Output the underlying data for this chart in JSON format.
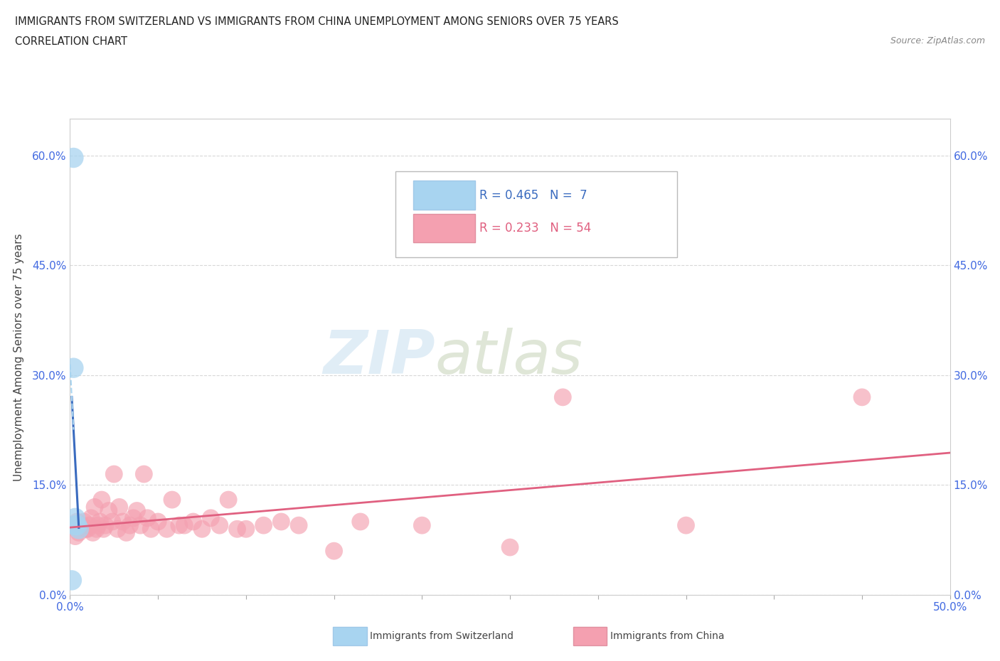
{
  "title_line1": "IMMIGRANTS FROM SWITZERLAND VS IMMIGRANTS FROM CHINA UNEMPLOYMENT AMONG SENIORS OVER 75 YEARS",
  "title_line2": "CORRELATION CHART",
  "source_text": "Source: ZipAtlas.com",
  "ylabel": "Unemployment Among Seniors over 75 years",
  "xlim": [
    0.0,
    0.5
  ],
  "ylim": [
    0.0,
    0.65
  ],
  "yticks": [
    0.0,
    0.15,
    0.3,
    0.45,
    0.6
  ],
  "ytick_labels": [
    "0.0%",
    "15.0%",
    "30.0%",
    "45.0%",
    "60.0%"
  ],
  "xtick_positions": [
    0.0,
    0.05,
    0.1,
    0.15,
    0.2,
    0.25,
    0.3,
    0.35,
    0.4,
    0.45,
    0.5
  ],
  "xtick_labels": [
    "0.0%",
    "",
    "",
    "",
    "",
    "",
    "",
    "",
    "",
    "",
    "50.0%"
  ],
  "color_swiss": "#a8d4f0",
  "color_swiss_line": "#3a6bbf",
  "color_swiss_dash": "#a8d4f0",
  "color_china": "#f4a0b0",
  "color_china_line": "#e06080",
  "legend_swiss_R": "0.465",
  "legend_swiss_N": "7",
  "legend_china_R": "0.233",
  "legend_china_N": "54",
  "swiss_x": [
    0.002,
    0.002,
    0.003,
    0.003,
    0.004,
    0.005,
    0.001
  ],
  "swiss_y": [
    0.597,
    0.31,
    0.105,
    0.095,
    0.095,
    0.09,
    0.02
  ],
  "china_x": [
    0.002,
    0.003,
    0.004,
    0.005,
    0.007,
    0.008,
    0.009,
    0.01,
    0.011,
    0.012,
    0.013,
    0.014,
    0.015,
    0.016,
    0.017,
    0.018,
    0.019,
    0.02,
    0.022,
    0.024,
    0.025,
    0.027,
    0.028,
    0.03,
    0.032,
    0.034,
    0.036,
    0.038,
    0.04,
    0.042,
    0.044,
    0.046,
    0.05,
    0.055,
    0.058,
    0.062,
    0.065,
    0.07,
    0.075,
    0.08,
    0.085,
    0.09,
    0.095,
    0.1,
    0.11,
    0.12,
    0.13,
    0.15,
    0.165,
    0.2,
    0.25,
    0.28,
    0.35,
    0.45
  ],
  "china_y": [
    0.095,
    0.08,
    0.1,
    0.085,
    0.095,
    0.1,
    0.09,
    0.09,
    0.095,
    0.105,
    0.085,
    0.12,
    0.09,
    0.095,
    0.1,
    0.13,
    0.09,
    0.095,
    0.115,
    0.1,
    0.165,
    0.09,
    0.12,
    0.1,
    0.085,
    0.095,
    0.105,
    0.115,
    0.095,
    0.165,
    0.105,
    0.09,
    0.1,
    0.09,
    0.13,
    0.095,
    0.095,
    0.1,
    0.09,
    0.105,
    0.095,
    0.13,
    0.09,
    0.09,
    0.095,
    0.1,
    0.095,
    0.06,
    0.1,
    0.095,
    0.065,
    0.27,
    0.095,
    0.27
  ],
  "watermark_zip": "ZIP",
  "watermark_atlas": "atlas",
  "background_color": "#ffffff",
  "grid_color": "#d8d8d8"
}
